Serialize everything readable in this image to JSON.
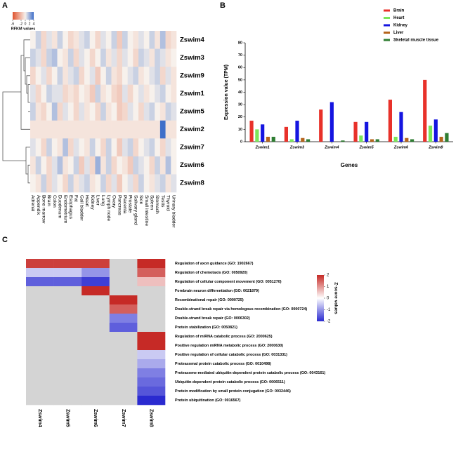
{
  "panel_labels": [
    "A",
    "B",
    "C"
  ],
  "chart_data": [
    {
      "type": "heatmap",
      "rows": [
        "Zswim4",
        "Zswim3",
        "Zswim9",
        "Zswim1",
        "Zswim5",
        "Zswim2",
        "Zswim7",
        "Zswim6",
        "Zswim8"
      ],
      "columns": [
        "Adrenal",
        "Appendix",
        "Bone marrow",
        "Brain",
        "Colon",
        "Duodenum",
        "Endometrium",
        "Esophagus",
        "Fat",
        "Gall bladder",
        "Heart",
        "Kidney",
        "Liver",
        "Lung",
        "Lymph node",
        "Ovary",
        "Pancreas",
        "Placenta",
        "Prostate",
        "Salivary gland",
        "Skin",
        "Small intestine",
        "Spleen",
        "Stomach",
        "Testis",
        "Thyroid",
        "Urinary bladder"
      ],
      "values": [
        [
          0,
          1,
          -1,
          0.5,
          -0.5,
          1,
          0,
          -1,
          -0.5,
          0.5,
          1,
          0,
          -1,
          0.5,
          0,
          1,
          -1.5,
          1,
          0,
          -0.5,
          0.5,
          0,
          1,
          -0.5,
          1.5,
          -1,
          -0.5
        ],
        [
          1,
          0.5,
          -1,
          1,
          1.5,
          0,
          -0.5,
          1,
          -1,
          0.5,
          0,
          -1,
          0,
          1,
          -0.5,
          0.5,
          -1,
          0.5,
          0,
          -1,
          1,
          0.5,
          -0.5,
          1,
          0.5,
          -0.5,
          0
        ],
        [
          -1,
          0,
          0.5,
          -1,
          0,
          1,
          -0.5,
          0.5,
          1,
          -1,
          0,
          0.5,
          -1.5,
          0,
          1,
          -0.5,
          -1,
          0,
          0.5,
          1,
          -0.5,
          0,
          0.5,
          1,
          -1,
          0.5,
          -0.5
        ],
        [
          0.5,
          -1,
          0,
          1,
          0.5,
          0.5,
          -1,
          -0.5,
          -1,
          0,
          -0.5,
          -1.5,
          1,
          -0.5,
          0,
          -1,
          -1.5,
          0.5,
          -1,
          0,
          0.5,
          -0.5,
          0,
          0.5,
          1,
          0,
          -0.5
        ],
        [
          1,
          -0.5,
          -1,
          0,
          1.5,
          -1,
          0.5,
          0,
          -1,
          0.5,
          -0.5,
          0,
          -1,
          1,
          -0.5,
          0,
          -1.5,
          -1,
          0.5,
          0,
          -1,
          0.5,
          1,
          0,
          -0.5,
          1,
          0.5
        ],
        [
          -0.5,
          -0.5,
          -0.5,
          -0.5,
          -0.5,
          -0.5,
          -0.5,
          -0.5,
          -0.5,
          -0.5,
          -0.5,
          -0.5,
          -0.5,
          -0.5,
          -0.5,
          -0.5,
          -0.5,
          -0.5,
          -0.5,
          -0.5,
          -0.5,
          -0.5,
          -0.5,
          -0.5,
          4,
          -0.5,
          -0.5
        ],
        [
          0.5,
          0,
          -1,
          1,
          0,
          -0.5,
          1.5,
          -1,
          0.5,
          0,
          -0.5,
          1,
          0,
          -1,
          1,
          0,
          -1.5,
          0.5,
          1,
          -1,
          0,
          0.5,
          1,
          0,
          -1,
          0.5,
          0
        ],
        [
          -0.5,
          1,
          0,
          -1,
          0.5,
          1.5,
          -0.5,
          0,
          1,
          -1.5,
          0.5,
          -1,
          2,
          -0.5,
          1,
          -1,
          0,
          -0.5,
          -1.5,
          1,
          0.5,
          0,
          -1,
          1,
          -0.5,
          1.5,
          0
        ],
        [
          0,
          -0.5,
          1,
          -1,
          0.5,
          0,
          -1,
          1,
          -0.5,
          0.5,
          1,
          -0.5,
          0,
          1,
          -1,
          0.5,
          -1.5,
          0,
          0.5,
          -1,
          1,
          0,
          -0.5,
          0.5,
          1,
          -0.5,
          0.5
        ]
      ],
      "colors": [
        "#e0542e",
        "#f7f1ec",
        "#3f6fc9"
      ],
      "colorbar": {
        "title": "RFKM values",
        "zlim": [
          -6,
          4
        ],
        "ticks": [
          -6,
          -2,
          0,
          2,
          4
        ]
      }
    },
    {
      "type": "bar",
      "categories": [
        "Zswim1",
        "Zswim3",
        "Zswim4",
        "Zswim5",
        "Zswim6",
        "Zswim8"
      ],
      "series": [
        {
          "name": "Brain",
          "color": "#e8312a",
          "values": [
            17,
            12,
            26,
            16,
            34,
            50
          ]
        },
        {
          "name": "Heart",
          "color": "#7be65a",
          "values": [
            10,
            2,
            0,
            5,
            4,
            13
          ]
        },
        {
          "name": "Kidney",
          "color": "#1515e0",
          "values": [
            14,
            17,
            32,
            16,
            24,
            18
          ]
        },
        {
          "name": "Liver",
          "color": "#b5651d",
          "values": [
            4,
            3,
            0,
            2,
            3,
            4
          ]
        },
        {
          "name": "Skeletal muscle tissue",
          "color": "#2e7d32",
          "values": [
            4,
            2,
            1,
            2,
            2,
            7
          ]
        }
      ],
      "y_label": "Expression value (TPM)",
      "x_label": "Genes",
      "ylim": [
        0,
        80
      ],
      "yticks": [
        0,
        10,
        20,
        30,
        40,
        50,
        60,
        70,
        80
      ],
      "legend": "top-right"
    },
    {
      "type": "heatmap",
      "rows": [
        "Regulation of axon guidance (GO: 1902667)",
        "Regulation of chemotaxis (GO: 0050920)",
        "Regulation of cellular component movement (GO: 0051270)",
        "Forebrain neuron differentiation (GO: 0021879)",
        "Recombinational repair (GO: 0000725)",
        "Double-strand break repair via homologous recombination (GO: 0000724)",
        "Double-strand break repair (GO: 0006302)",
        "Protein stabilization (GO: 0050821)",
        "Regulation of miRNA catabolic process (GO: 2000625)",
        "Positive regulation miRNA metabolic process (GO: 2000630)",
        "Positive regulation of cellular catabolic process (GO: 0031331)",
        "Proteasomal protein catabolic process (GO: 0010498)",
        "Proteasome-mediated ubiquitin-dependent protein catabolic process (GO: 0043161)",
        "Ubiquitin-dependent protein catabolic process (GO: 0006511)",
        "Protein modification by small protein conjugation (GO: 0032446)",
        "Protein ubiquitination (GO: 0016567)"
      ],
      "columns": [
        "Zswim4",
        "Zswim5",
        "Zswim6",
        "Zswim7",
        "Zswim8"
      ],
      "values": [
        [
          1.8,
          1.8,
          1.8,
          null,
          2
        ],
        [
          -0.5,
          -0.5,
          -1,
          null,
          1.5
        ],
        [
          -1.5,
          -1.5,
          -1.8,
          null,
          0.6
        ],
        [
          null,
          null,
          2,
          null,
          null
        ],
        [
          null,
          null,
          null,
          2,
          null
        ],
        [
          null,
          null,
          null,
          1.5,
          null
        ],
        [
          null,
          null,
          null,
          -1.2,
          null
        ],
        [
          null,
          null,
          null,
          -1.5,
          null
        ],
        [
          null,
          null,
          null,
          null,
          2
        ],
        [
          null,
          null,
          null,
          null,
          2
        ],
        [
          null,
          null,
          null,
          null,
          -0.5
        ],
        [
          null,
          null,
          null,
          null,
          -0.8
        ],
        [
          null,
          null,
          null,
          null,
          -1.2
        ],
        [
          null,
          null,
          null,
          null,
          -1.4
        ],
        [
          null,
          null,
          null,
          null,
          -1.6
        ],
        [
          null,
          null,
          null,
          null,
          -2
        ]
      ],
      "colors": [
        "#2a2ad0",
        "#ffffff",
        "#c62a26"
      ],
      "null_color": "#d4d4d4",
      "colorbar": {
        "title": "Z-score values",
        "zlim": [
          -2,
          2
        ],
        "ticks": [
          2,
          1,
          0,
          -1,
          -2
        ]
      }
    }
  ]
}
